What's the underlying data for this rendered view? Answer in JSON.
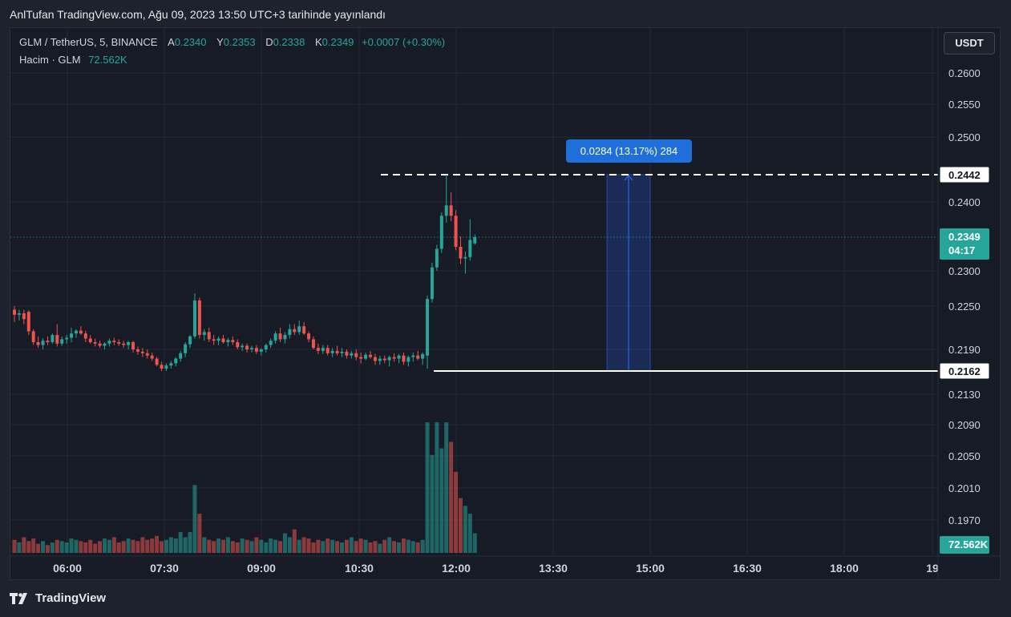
{
  "header": {
    "text": "AnlTufan TradingView.com, Ağu 09, 2023 13:50 UTC+3 tarihinde yayınlandı"
  },
  "legend": {
    "symbol": "GLM / TetherUS, 5, BINANCE",
    "open_label": "A",
    "open": "0.2340",
    "high_label": "Y",
    "high": "0.2353",
    "low_label": "D",
    "low": "0.2338",
    "close_label": "K",
    "close": "0.2349",
    "change": "+0.0007 (+0.30%)",
    "volume_name": "Hacim · GLM",
    "volume_value": "72.562K"
  },
  "currency_button": "USDT",
  "footer": {
    "brand": "TradingView"
  },
  "colors": {
    "up": "#26a69a",
    "down": "#ef5350",
    "background": "#171b26",
    "measure": "#2962ff"
  },
  "chart_data": {
    "type": "candlestick",
    "symbol": "GLM / TetherUS",
    "interval": "5",
    "exchange": "BINANCE",
    "x_tick_labels": [
      "06:00",
      "07:30",
      "09:00",
      "10:30",
      "12:00",
      "13:30",
      "15:00",
      "16:30",
      "18:00",
      "19"
    ],
    "y_tick_labels": [
      "0.2600",
      "0.2550",
      "0.2500",
      "0.2400",
      "0.2300",
      "0.2250",
      "0.2190",
      "0.2130",
      "0.2090",
      "0.2050",
      "0.2010",
      "0.1970"
    ],
    "ylim": [
      0.1945,
      0.265
    ],
    "grid": true,
    "price_labels": {
      "last": "0.2349",
      "countdown": "04:17",
      "top_line": "0.2442",
      "bottom_line": "0.2162",
      "volume": "72.562K"
    },
    "measure_label": "0.0284 (13.17%) 284",
    "series": [
      {
        "name": "GLM",
        "ohlc": [
          [
            0.2245,
            0.225,
            0.2228,
            0.2238
          ],
          [
            0.2238,
            0.2245,
            0.223,
            0.224
          ],
          [
            0.224,
            0.2245,
            0.2225,
            0.2232
          ],
          [
            0.2242,
            0.2244,
            0.221,
            0.2215
          ],
          [
            0.2215,
            0.2218,
            0.2196,
            0.22
          ],
          [
            0.22,
            0.2208,
            0.2192,
            0.2196
          ],
          [
            0.2196,
            0.2205,
            0.219,
            0.2202
          ],
          [
            0.2202,
            0.2208,
            0.2196,
            0.22
          ],
          [
            0.22,
            0.2212,
            0.2198,
            0.221
          ],
          [
            0.221,
            0.2225,
            0.2194,
            0.2198
          ],
          [
            0.2198,
            0.2208,
            0.2195,
            0.2204
          ],
          [
            0.2204,
            0.221,
            0.2198,
            0.2206
          ],
          [
            0.2206,
            0.222,
            0.22,
            0.2212
          ],
          [
            0.2212,
            0.2218,
            0.2206,
            0.2216
          ],
          [
            0.2216,
            0.2222,
            0.221,
            0.2212
          ],
          [
            0.2212,
            0.2216,
            0.22,
            0.2205
          ],
          [
            0.2205,
            0.221,
            0.2198,
            0.22
          ],
          [
            0.22,
            0.2205,
            0.2194,
            0.2198
          ],
          [
            0.2198,
            0.2202,
            0.2192,
            0.2195
          ],
          [
            0.2195,
            0.22,
            0.219,
            0.2198
          ],
          [
            0.2198,
            0.2205,
            0.2194,
            0.2202
          ],
          [
            0.2202,
            0.2206,
            0.2196,
            0.22
          ],
          [
            0.22,
            0.2204,
            0.2195,
            0.2198
          ],
          [
            0.2198,
            0.2202,
            0.2192,
            0.2196
          ],
          [
            0.2196,
            0.2202,
            0.219,
            0.22
          ],
          [
            0.22,
            0.2202,
            0.2186,
            0.219
          ],
          [
            0.219,
            0.2194,
            0.2183,
            0.2187
          ],
          [
            0.2187,
            0.2192,
            0.218,
            0.2185
          ],
          [
            0.2185,
            0.219,
            0.2178,
            0.2182
          ],
          [
            0.2182,
            0.2186,
            0.2175,
            0.2178
          ],
          [
            0.2178,
            0.218,
            0.2168,
            0.217
          ],
          [
            0.217,
            0.2174,
            0.2162,
            0.2165
          ],
          [
            0.2165,
            0.2172,
            0.2162,
            0.2169
          ],
          [
            0.2169,
            0.2175,
            0.2165,
            0.2172
          ],
          [
            0.2172,
            0.218,
            0.2168,
            0.2178
          ],
          [
            0.2178,
            0.2188,
            0.2174,
            0.2185
          ],
          [
            0.2185,
            0.22,
            0.218,
            0.2197
          ],
          [
            0.2197,
            0.221,
            0.2192,
            0.2208
          ],
          [
            0.2208,
            0.2268,
            0.2205,
            0.2258
          ],
          [
            0.2258,
            0.2262,
            0.2205,
            0.221
          ],
          [
            0.221,
            0.2218,
            0.2202,
            0.2214
          ],
          [
            0.2214,
            0.222,
            0.22,
            0.2204
          ],
          [
            0.2204,
            0.221,
            0.2196,
            0.2202
          ],
          [
            0.2202,
            0.2208,
            0.2196,
            0.2205
          ],
          [
            0.2205,
            0.221,
            0.2198,
            0.22
          ],
          [
            0.22,
            0.2206,
            0.2194,
            0.2203
          ],
          [
            0.2203,
            0.2208,
            0.2196,
            0.22
          ],
          [
            0.22,
            0.2204,
            0.219,
            0.2193
          ],
          [
            0.2193,
            0.2198,
            0.2188,
            0.2195
          ],
          [
            0.2195,
            0.2198,
            0.2186,
            0.219
          ],
          [
            0.219,
            0.2195,
            0.2186,
            0.2192
          ],
          [
            0.2192,
            0.2196,
            0.2184,
            0.2187
          ],
          [
            0.2187,
            0.2192,
            0.2182,
            0.219
          ],
          [
            0.219,
            0.2198,
            0.2186,
            0.2196
          ],
          [
            0.2196,
            0.2205,
            0.2192,
            0.2202
          ],
          [
            0.2202,
            0.2215,
            0.2198,
            0.2212
          ],
          [
            0.2212,
            0.222,
            0.22,
            0.2204
          ],
          [
            0.2204,
            0.2214,
            0.2198,
            0.221
          ],
          [
            0.221,
            0.2225,
            0.2205,
            0.2218
          ],
          [
            0.2218,
            0.2225,
            0.221,
            0.2214
          ],
          [
            0.2214,
            0.223,
            0.221,
            0.2222
          ],
          [
            0.2222,
            0.2228,
            0.221,
            0.2212
          ],
          [
            0.2212,
            0.2215,
            0.22,
            0.2204
          ],
          [
            0.2204,
            0.2208,
            0.219,
            0.2192
          ],
          [
            0.2192,
            0.2198,
            0.2184,
            0.2188
          ],
          [
            0.2188,
            0.2196,
            0.2184,
            0.2192
          ],
          [
            0.2192,
            0.2196,
            0.2182,
            0.2185
          ],
          [
            0.2185,
            0.2192,
            0.218,
            0.2188
          ],
          [
            0.2188,
            0.2195,
            0.2182,
            0.2185
          ],
          [
            0.2185,
            0.2192,
            0.218,
            0.2187
          ],
          [
            0.2187,
            0.219,
            0.2178,
            0.2182
          ],
          [
            0.2182,
            0.2188,
            0.2178,
            0.2185
          ],
          [
            0.2185,
            0.219,
            0.2176,
            0.218
          ],
          [
            0.218,
            0.2186,
            0.2172,
            0.2178
          ],
          [
            0.2178,
            0.2186,
            0.2176,
            0.2183
          ],
          [
            0.2183,
            0.2188,
            0.2178,
            0.218
          ],
          [
            0.218,
            0.2184,
            0.217,
            0.2175
          ],
          [
            0.2175,
            0.2182,
            0.217,
            0.2178
          ],
          [
            0.2178,
            0.2182,
            0.2172,
            0.2176
          ],
          [
            0.2176,
            0.2182,
            0.2168,
            0.218
          ],
          [
            0.218,
            0.2185,
            0.2174,
            0.2178
          ],
          [
            0.2178,
            0.2184,
            0.2172,
            0.2182
          ],
          [
            0.2182,
            0.2186,
            0.217,
            0.2174
          ],
          [
            0.2174,
            0.2182,
            0.2168,
            0.218
          ],
          [
            0.218,
            0.2186,
            0.2174,
            0.2182
          ],
          [
            0.2182,
            0.2188,
            0.2176,
            0.2178
          ],
          [
            0.2178,
            0.2186,
            0.217,
            0.2184
          ],
          [
            0.2182,
            0.2265,
            0.2165,
            0.226
          ],
          [
            0.226,
            0.2312,
            0.2255,
            0.2305
          ],
          [
            0.2305,
            0.2338,
            0.23,
            0.2332
          ],
          [
            0.2332,
            0.2385,
            0.2326,
            0.238
          ],
          [
            0.238,
            0.2442,
            0.237,
            0.2395
          ],
          [
            0.2395,
            0.2415,
            0.2372,
            0.238
          ],
          [
            0.238,
            0.2388,
            0.233,
            0.2335
          ],
          [
            0.2335,
            0.235,
            0.231,
            0.2318
          ],
          [
            0.2318,
            0.2328,
            0.2296,
            0.232
          ],
          [
            0.232,
            0.2375,
            0.2315,
            0.2345
          ],
          [
            0.234,
            0.2353,
            0.2338,
            0.2349
          ]
        ]
      }
    ],
    "volume": [
      0.1,
      0.08,
      0.12,
      0.09,
      0.11,
      0.07,
      0.09,
      0.06,
      0.08,
      0.1,
      0.09,
      0.08,
      0.11,
      0.1,
      0.09,
      0.08,
      0.1,
      0.07,
      0.09,
      0.11,
      0.1,
      0.12,
      0.08,
      0.09,
      0.11,
      0.1,
      0.09,
      0.12,
      0.1,
      0.11,
      0.13,
      0.09,
      0.1,
      0.12,
      0.11,
      0.16,
      0.12,
      0.16,
      0.52,
      0.3,
      0.12,
      0.1,
      0.09,
      0.11,
      0.1,
      0.12,
      0.09,
      0.08,
      0.11,
      0.1,
      0.09,
      0.12,
      0.1,
      0.08,
      0.11,
      0.1,
      0.09,
      0.15,
      0.12,
      0.18,
      0.1,
      0.12,
      0.11,
      0.08,
      0.1,
      0.09,
      0.11,
      0.1,
      0.09,
      0.08,
      0.1,
      0.12,
      0.09,
      0.11,
      0.1,
      0.08,
      0.09,
      0.07,
      0.1,
      0.12,
      0.09,
      0.08,
      0.11,
      0.1,
      0.09,
      0.08,
      0.1,
      1.0,
      0.75,
      1.0,
      0.8,
      1.0,
      0.85,
      0.62,
      0.42,
      0.36,
      0.3,
      0.15
    ]
  }
}
